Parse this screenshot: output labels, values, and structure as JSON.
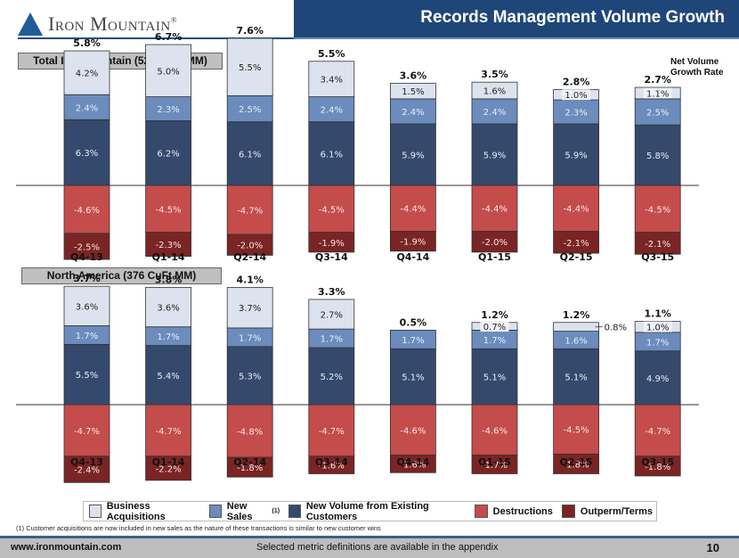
{
  "header": {
    "logo_text": "Iron Mountain",
    "logo_mark": "®",
    "title": "Records Management Volume Growth"
  },
  "net_label": [
    "Net Volume",
    "Growth Rate"
  ],
  "colors": {
    "business_acquisitions": "#dde3ee",
    "new_sales": "#6b8cbc",
    "new_volume_existing": "#34496c",
    "destructions": "#c44c4b",
    "outperm_terms": "#7a2424"
  },
  "chart_data": [
    {
      "type": "bar",
      "stacked": true,
      "title": "Total Iron Mountain (528 CuFt MM)",
      "categories": [
        "Q4-13",
        "Q1-14",
        "Q2-14",
        "Q3-14",
        "Q4-14",
        "Q1-15",
        "Q2-15",
        "Q3-15"
      ],
      "net_growth": [
        "5.8%",
        "6.7%",
        "7.6%",
        "5.5%",
        "3.6%",
        "3.5%",
        "2.8%",
        "2.7%"
      ],
      "series": [
        {
          "name": "Business Acquisitions",
          "values": [
            4.2,
            5.0,
            5.5,
            3.4,
            1.5,
            1.6,
            1.0,
            1.1
          ]
        },
        {
          "name": "New Sales",
          "values": [
            2.4,
            2.3,
            2.5,
            2.4,
            2.4,
            2.4,
            2.3,
            2.5
          ]
        },
        {
          "name": "New Volume from Existing Customers",
          "values": [
            6.3,
            6.2,
            6.1,
            6.1,
            5.9,
            5.9,
            5.9,
            5.8
          ]
        },
        {
          "name": "Destructions",
          "values": [
            -4.6,
            -4.5,
            -4.7,
            -4.5,
            -4.4,
            -4.4,
            -4.4,
            -4.5
          ]
        },
        {
          "name": "Outperm/Terms",
          "values": [
            -2.5,
            -2.3,
            -2.0,
            -1.9,
            -1.9,
            -2.0,
            -2.1,
            -2.1
          ]
        }
      ],
      "unit": "%"
    },
    {
      "type": "bar",
      "stacked": true,
      "title": "North America (376 CuFt MM)",
      "categories": [
        "Q4-13",
        "Q1-14",
        "Q2-14",
        "Q3-14",
        "Q4-14",
        "Q1-15",
        "Q2-15",
        "Q3-15"
      ],
      "net_growth": [
        "3.7%",
        "3.8%",
        "4.1%",
        "3.3%",
        "0.5%",
        "1.2%",
        "1.2%",
        "1.1%"
      ],
      "series": [
        {
          "name": "Business Acquisitions",
          "values": [
            3.6,
            3.6,
            3.7,
            2.7,
            0,
            0.7,
            0.8,
            1.0
          ]
        },
        {
          "name": "New Sales",
          "values": [
            1.7,
            1.7,
            1.7,
            1.7,
            1.7,
            1.7,
            1.6,
            1.7
          ]
        },
        {
          "name": "New Volume from Existing Customers",
          "values": [
            5.5,
            5.4,
            5.3,
            5.2,
            5.1,
            5.1,
            5.1,
            4.9
          ]
        },
        {
          "name": "Destructions",
          "values": [
            -4.7,
            -4.7,
            -4.8,
            -4.7,
            -4.6,
            -4.6,
            -4.5,
            -4.7
          ]
        },
        {
          "name": "Outperm/Terms",
          "values": [
            -2.4,
            -2.2,
            -1.8,
            -1.6,
            -1.6,
            -1.7,
            -1.8,
            -1.8
          ]
        }
      ],
      "unit": "%",
      "annotations": [
        {
          "category": "Q2-15",
          "series": "Business Acquisitions",
          "text": "0.8%",
          "placement": "outside-right"
        }
      ]
    }
  ],
  "legend": {
    "items": [
      {
        "label": "Business Acquisitions",
        "sup": ""
      },
      {
        "label": "New Sales",
        "sup": "(1)"
      },
      {
        "label": "New Volume from Existing Customers",
        "sup": ""
      },
      {
        "label": "Destructions",
        "sup": ""
      },
      {
        "label": "Outperm/Terms",
        "sup": ""
      }
    ]
  },
  "footnote": "(1) Customer acquisitions are now included in new sales as the nature of these transactions is similar to new customer wins",
  "footer": {
    "url": "www.ironmountain.com",
    "note": "Selected metric definitions are available in the appendix",
    "page": "10"
  }
}
